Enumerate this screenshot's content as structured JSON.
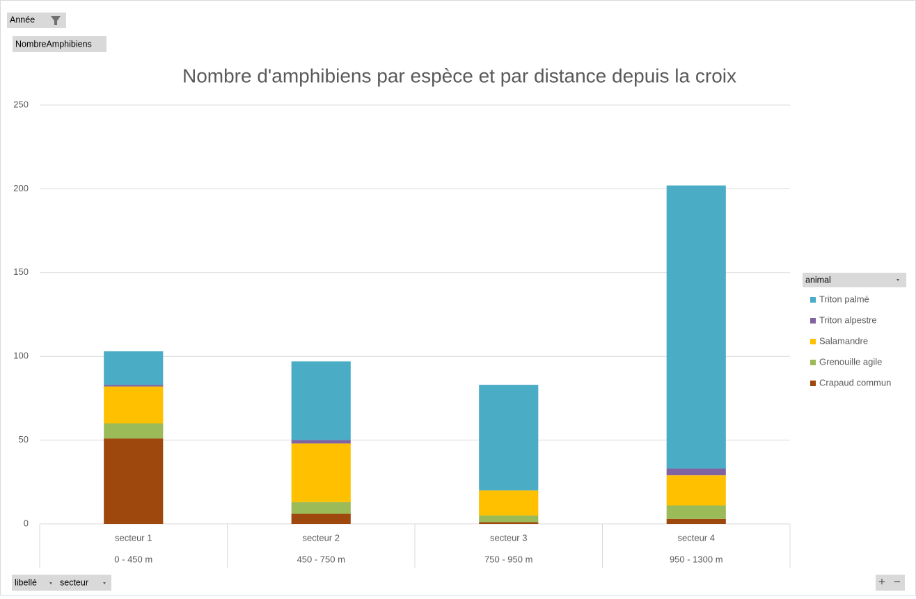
{
  "ui": {
    "filter_button": "Année",
    "value_field": "NombreAmphibiens",
    "axis_field_1": "libellé",
    "axis_field_2": "secteur",
    "zoom_in": "+",
    "zoom_out": "−"
  },
  "chart_data": {
    "type": "stacked_bar",
    "title": "Nombre d'amphibiens par espèce et par distance depuis la croix",
    "categories": [
      "secteur 1",
      "secteur 2",
      "secteur 3",
      "secteur 4"
    ],
    "category_ranges": [
      "0 - 450 m",
      "450 - 750 m",
      "750 - 950 m",
      "950 - 1300 m"
    ],
    "legend_title": "animal",
    "legend": "right",
    "grid": true,
    "ylim": [
      0,
      250
    ],
    "yticks": [
      0,
      50,
      100,
      150,
      200,
      250
    ],
    "series": [
      {
        "name": "Crapaud commun",
        "color": "#9e480e",
        "values": [
          51,
          6,
          1,
          3
        ]
      },
      {
        "name": "Grenouille agile",
        "color": "#9bbb59",
        "values": [
          9,
          7,
          4,
          8
        ]
      },
      {
        "name": "Salamandre",
        "color": "#ffc000",
        "values": [
          22,
          35,
          15,
          18
        ]
      },
      {
        "name": "Triton alpestre",
        "color": "#8064a2",
        "values": [
          1,
          2,
          0,
          4
        ]
      },
      {
        "name": "Triton palmé",
        "color": "#4bacc6",
        "values": [
          20,
          47,
          63,
          169
        ]
      }
    ]
  }
}
